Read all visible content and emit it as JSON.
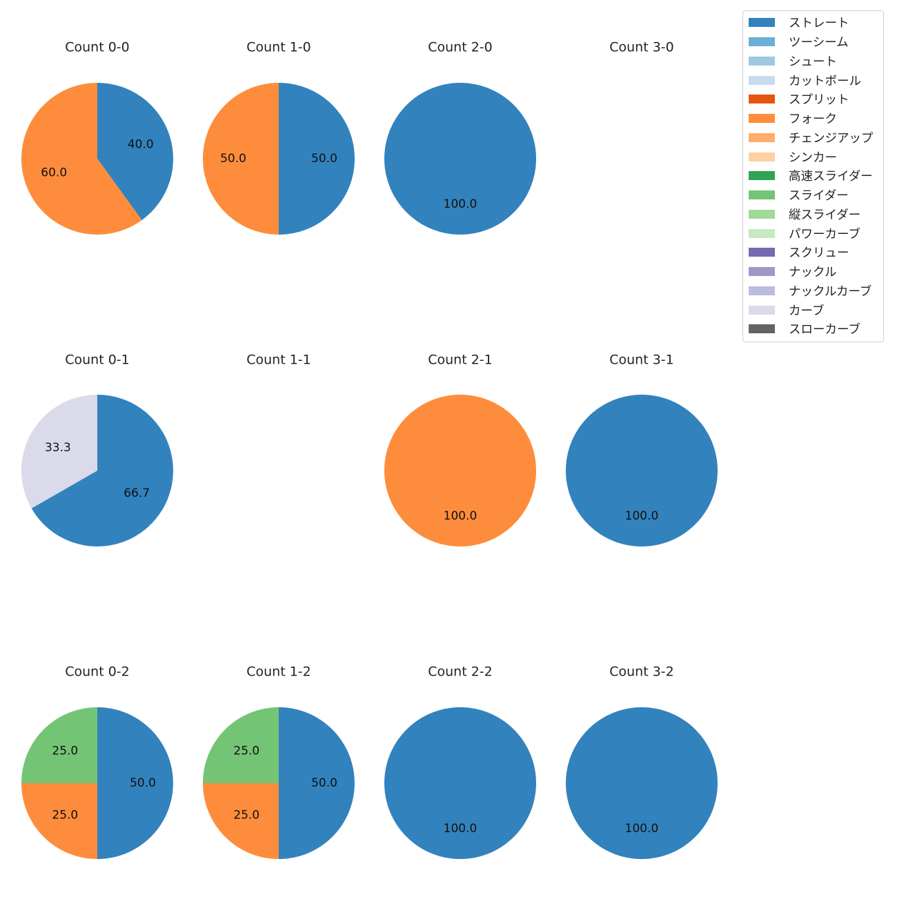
{
  "chart_data": {
    "type": "pie",
    "legend_position": "top-right",
    "legend": [
      {
        "name": "ストレート",
        "color": "#3282bd"
      },
      {
        "name": "ツーシーム",
        "color": "#6baed6"
      },
      {
        "name": "シュート",
        "color": "#9ecae1"
      },
      {
        "name": "カットボール",
        "color": "#c6dbef"
      },
      {
        "name": "スプリット",
        "color": "#e6550d"
      },
      {
        "name": "フォーク",
        "color": "#fd8d3c"
      },
      {
        "name": "チェンジアップ",
        "color": "#fdae6b"
      },
      {
        "name": "シンカー",
        "color": "#fdd0a2"
      },
      {
        "name": "高速スライダー",
        "color": "#31a354"
      },
      {
        "name": "スライダー",
        "color": "#74c476"
      },
      {
        "name": "縦スライダー",
        "color": "#a1d99b"
      },
      {
        "name": "パワーカーブ",
        "color": "#c7e9c0"
      },
      {
        "name": "スクリュー",
        "color": "#756bb1"
      },
      {
        "name": "ナックル",
        "color": "#9e9ac8"
      },
      {
        "name": "ナックルカーブ",
        "color": "#bcbddc"
      },
      {
        "name": "カーブ",
        "color": "#dadaeb"
      },
      {
        "name": "スローカーブ",
        "color": "#636363"
      }
    ],
    "panels": [
      {
        "title": "Count 0-0",
        "slices": [
          {
            "pitch": "ストレート",
            "value": 40.0
          },
          {
            "pitch": "フォーク",
            "value": 60.0
          }
        ]
      },
      {
        "title": "Count 1-0",
        "slices": [
          {
            "pitch": "ストレート",
            "value": 50.0
          },
          {
            "pitch": "フォーク",
            "value": 50.0
          }
        ]
      },
      {
        "title": "Count 2-0",
        "slices": [
          {
            "pitch": "ストレート",
            "value": 100.0
          }
        ]
      },
      {
        "title": "Count 3-0",
        "slices": []
      },
      {
        "title": "Count 0-1",
        "slices": [
          {
            "pitch": "ストレート",
            "value": 66.7
          },
          {
            "pitch": "カーブ",
            "value": 33.3
          }
        ]
      },
      {
        "title": "Count 1-1",
        "slices": []
      },
      {
        "title": "Count 2-1",
        "slices": [
          {
            "pitch": "フォーク",
            "value": 100.0
          }
        ]
      },
      {
        "title": "Count 3-1",
        "slices": [
          {
            "pitch": "ストレート",
            "value": 100.0
          }
        ]
      },
      {
        "title": "Count 0-2",
        "slices": [
          {
            "pitch": "ストレート",
            "value": 50.0
          },
          {
            "pitch": "フォーク",
            "value": 25.0
          },
          {
            "pitch": "スライダー",
            "value": 25.0
          }
        ]
      },
      {
        "title": "Count 1-2",
        "slices": [
          {
            "pitch": "ストレート",
            "value": 50.0
          },
          {
            "pitch": "フォーク",
            "value": 25.0
          },
          {
            "pitch": "スライダー",
            "value": 25.0
          }
        ]
      },
      {
        "title": "Count 2-2",
        "slices": [
          {
            "pitch": "ストレート",
            "value": 100.0
          }
        ]
      },
      {
        "title": "Count 3-2",
        "slices": [
          {
            "pitch": "ストレート",
            "value": 100.0
          }
        ]
      }
    ]
  }
}
